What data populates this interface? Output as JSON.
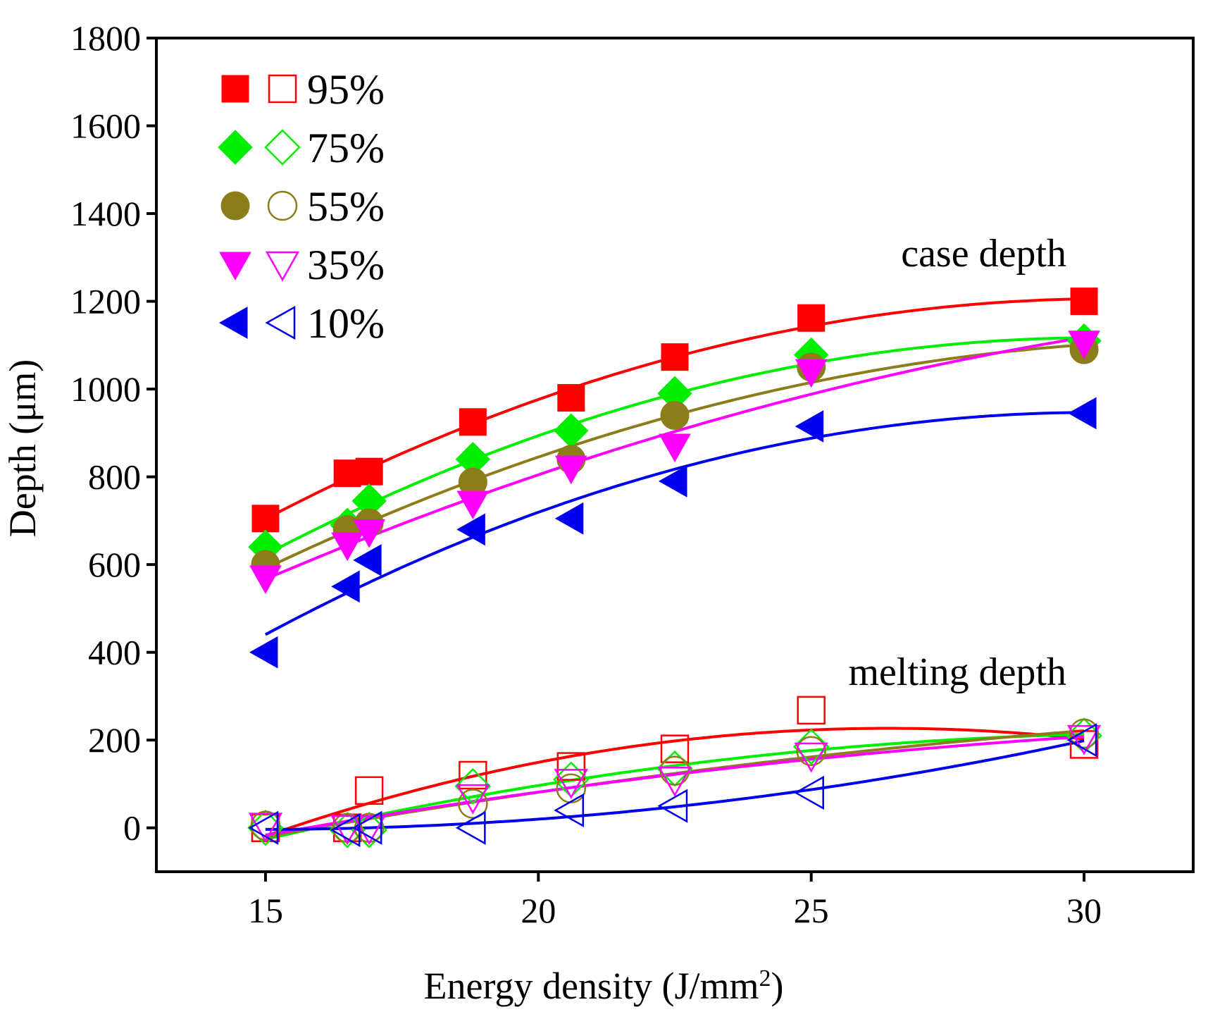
{
  "chart_data": {
    "type": "scatter",
    "title": "",
    "xlabel": "Energy density (J/mm",
    "xlabel_sup": "2",
    "xlabel_close": ")",
    "ylabel": "Depth (μm)",
    "xlim": [
      13,
      32
    ],
    "ylim": [
      -100,
      1800
    ],
    "xticks": [
      15,
      20,
      25,
      30
    ],
    "xtick_labels": [
      "15",
      "20",
      "25",
      "30"
    ],
    "yticks": [
      0,
      200,
      400,
      600,
      800,
      1000,
      1200,
      1400,
      1600,
      1800
    ],
    "ytick_labels": [
      "0",
      "200",
      "400",
      "600",
      "800",
      "1000",
      "1200",
      "1400",
      "1600",
      "1800"
    ],
    "grid": false,
    "legend_position": "top-left",
    "annotations": [
      {
        "text": "case depth",
        "x": 31,
        "y": 1280
      },
      {
        "text": "melting depth",
        "x": 31,
        "y": 330
      }
    ],
    "x": [
      15.0,
      16.5,
      16.9,
      18.8,
      20.6,
      22.5,
      25.0,
      30.0
    ],
    "series": [
      {
        "name": "95%",
        "color": "#ff0000",
        "marker": "square",
        "case_depth": [
          705,
          808,
          812,
          925,
          980,
          1073,
          1162,
          1200
        ],
        "melting_depth": [
          0,
          0,
          85,
          120,
          140,
          180,
          268,
          190
        ]
      },
      {
        "name": "75%",
        "color": "#00ee00",
        "marker": "diamond",
        "case_depth": [
          640,
          690,
          745,
          840,
          905,
          990,
          1078,
          1110
        ],
        "melting_depth": [
          0,
          -5,
          -5,
          95,
          110,
          135,
          185,
          210
        ]
      },
      {
        "name": "55%",
        "color": "#8b7d1a",
        "marker": "circle",
        "case_depth": [
          600,
          680,
          695,
          788,
          840,
          940,
          1050,
          1090
        ],
        "melting_depth": [
          5,
          0,
          0,
          55,
          90,
          130,
          175,
          215
        ]
      },
      {
        "name": "35%",
        "color": "#ff00ff",
        "marker": "triangle-down",
        "case_depth": [
          570,
          645,
          675,
          740,
          820,
          870,
          1040,
          1105
        ],
        "melting_depth": [
          5,
          0,
          0,
          70,
          105,
          110,
          165,
          205
        ]
      },
      {
        "name": "10%",
        "color": "#0000ee",
        "marker": "triangle-left",
        "case_depth": [
          400,
          550,
          610,
          680,
          705,
          790,
          915,
          945
        ],
        "melting_depth": [
          0,
          -5,
          0,
          0,
          40,
          50,
          80,
          200
        ]
      }
    ]
  }
}
